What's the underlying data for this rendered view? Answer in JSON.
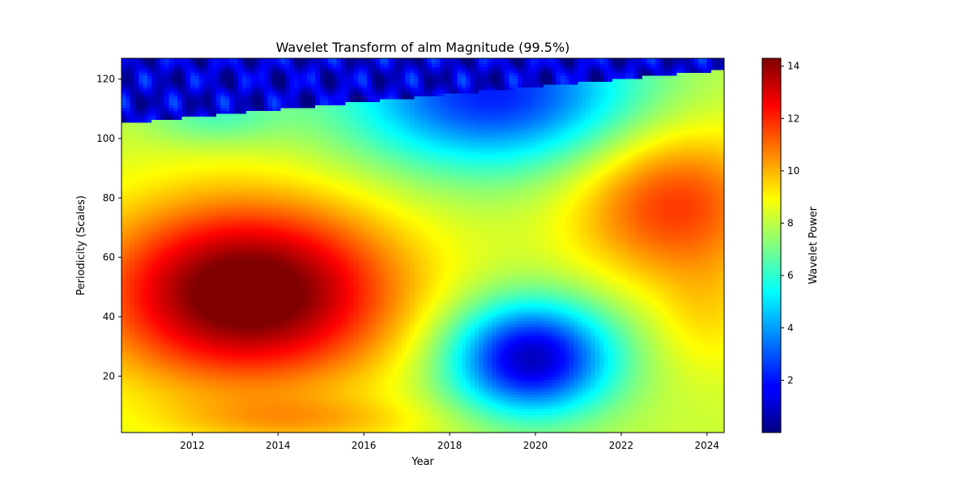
{
  "chart_data": {
    "type": "heatmap",
    "title": "Wavelet Transform of alm Magnitude (99.5%)",
    "xlabel": "Year",
    "ylabel": "Periodicity (Scales)",
    "xlim": [
      2010.35,
      2024.4
    ],
    "ylim": [
      1,
      127
    ],
    "x_ticks": [
      2012,
      2014,
      2016,
      2018,
      2020,
      2022,
      2024
    ],
    "y_ticks": [
      20,
      40,
      60,
      80,
      100,
      120
    ],
    "colorbar": {
      "label": "Wavelet Power",
      "range": [
        0,
        14.3
      ],
      "ticks": [
        2,
        4,
        6,
        8,
        10,
        12,
        14
      ],
      "colormap": "jet"
    },
    "grid": false,
    "power_features": [
      {
        "type": "peak",
        "x": 2013.3,
        "y": 48,
        "value": 14.3
      },
      {
        "type": "peak",
        "x": 2023.2,
        "y": 78,
        "value": 11.2
      },
      {
        "type": "trough",
        "x": 2019.9,
        "y": 26,
        "value": 1.0
      },
      {
        "type": "trough",
        "x": 2019.0,
        "y": 115,
        "value": 0.4
      }
    ],
    "edge_cutoff": [
      {
        "x": 2010.35,
        "y": 105
      },
      {
        "x": 2024.4,
        "y": 123
      }
    ]
  }
}
